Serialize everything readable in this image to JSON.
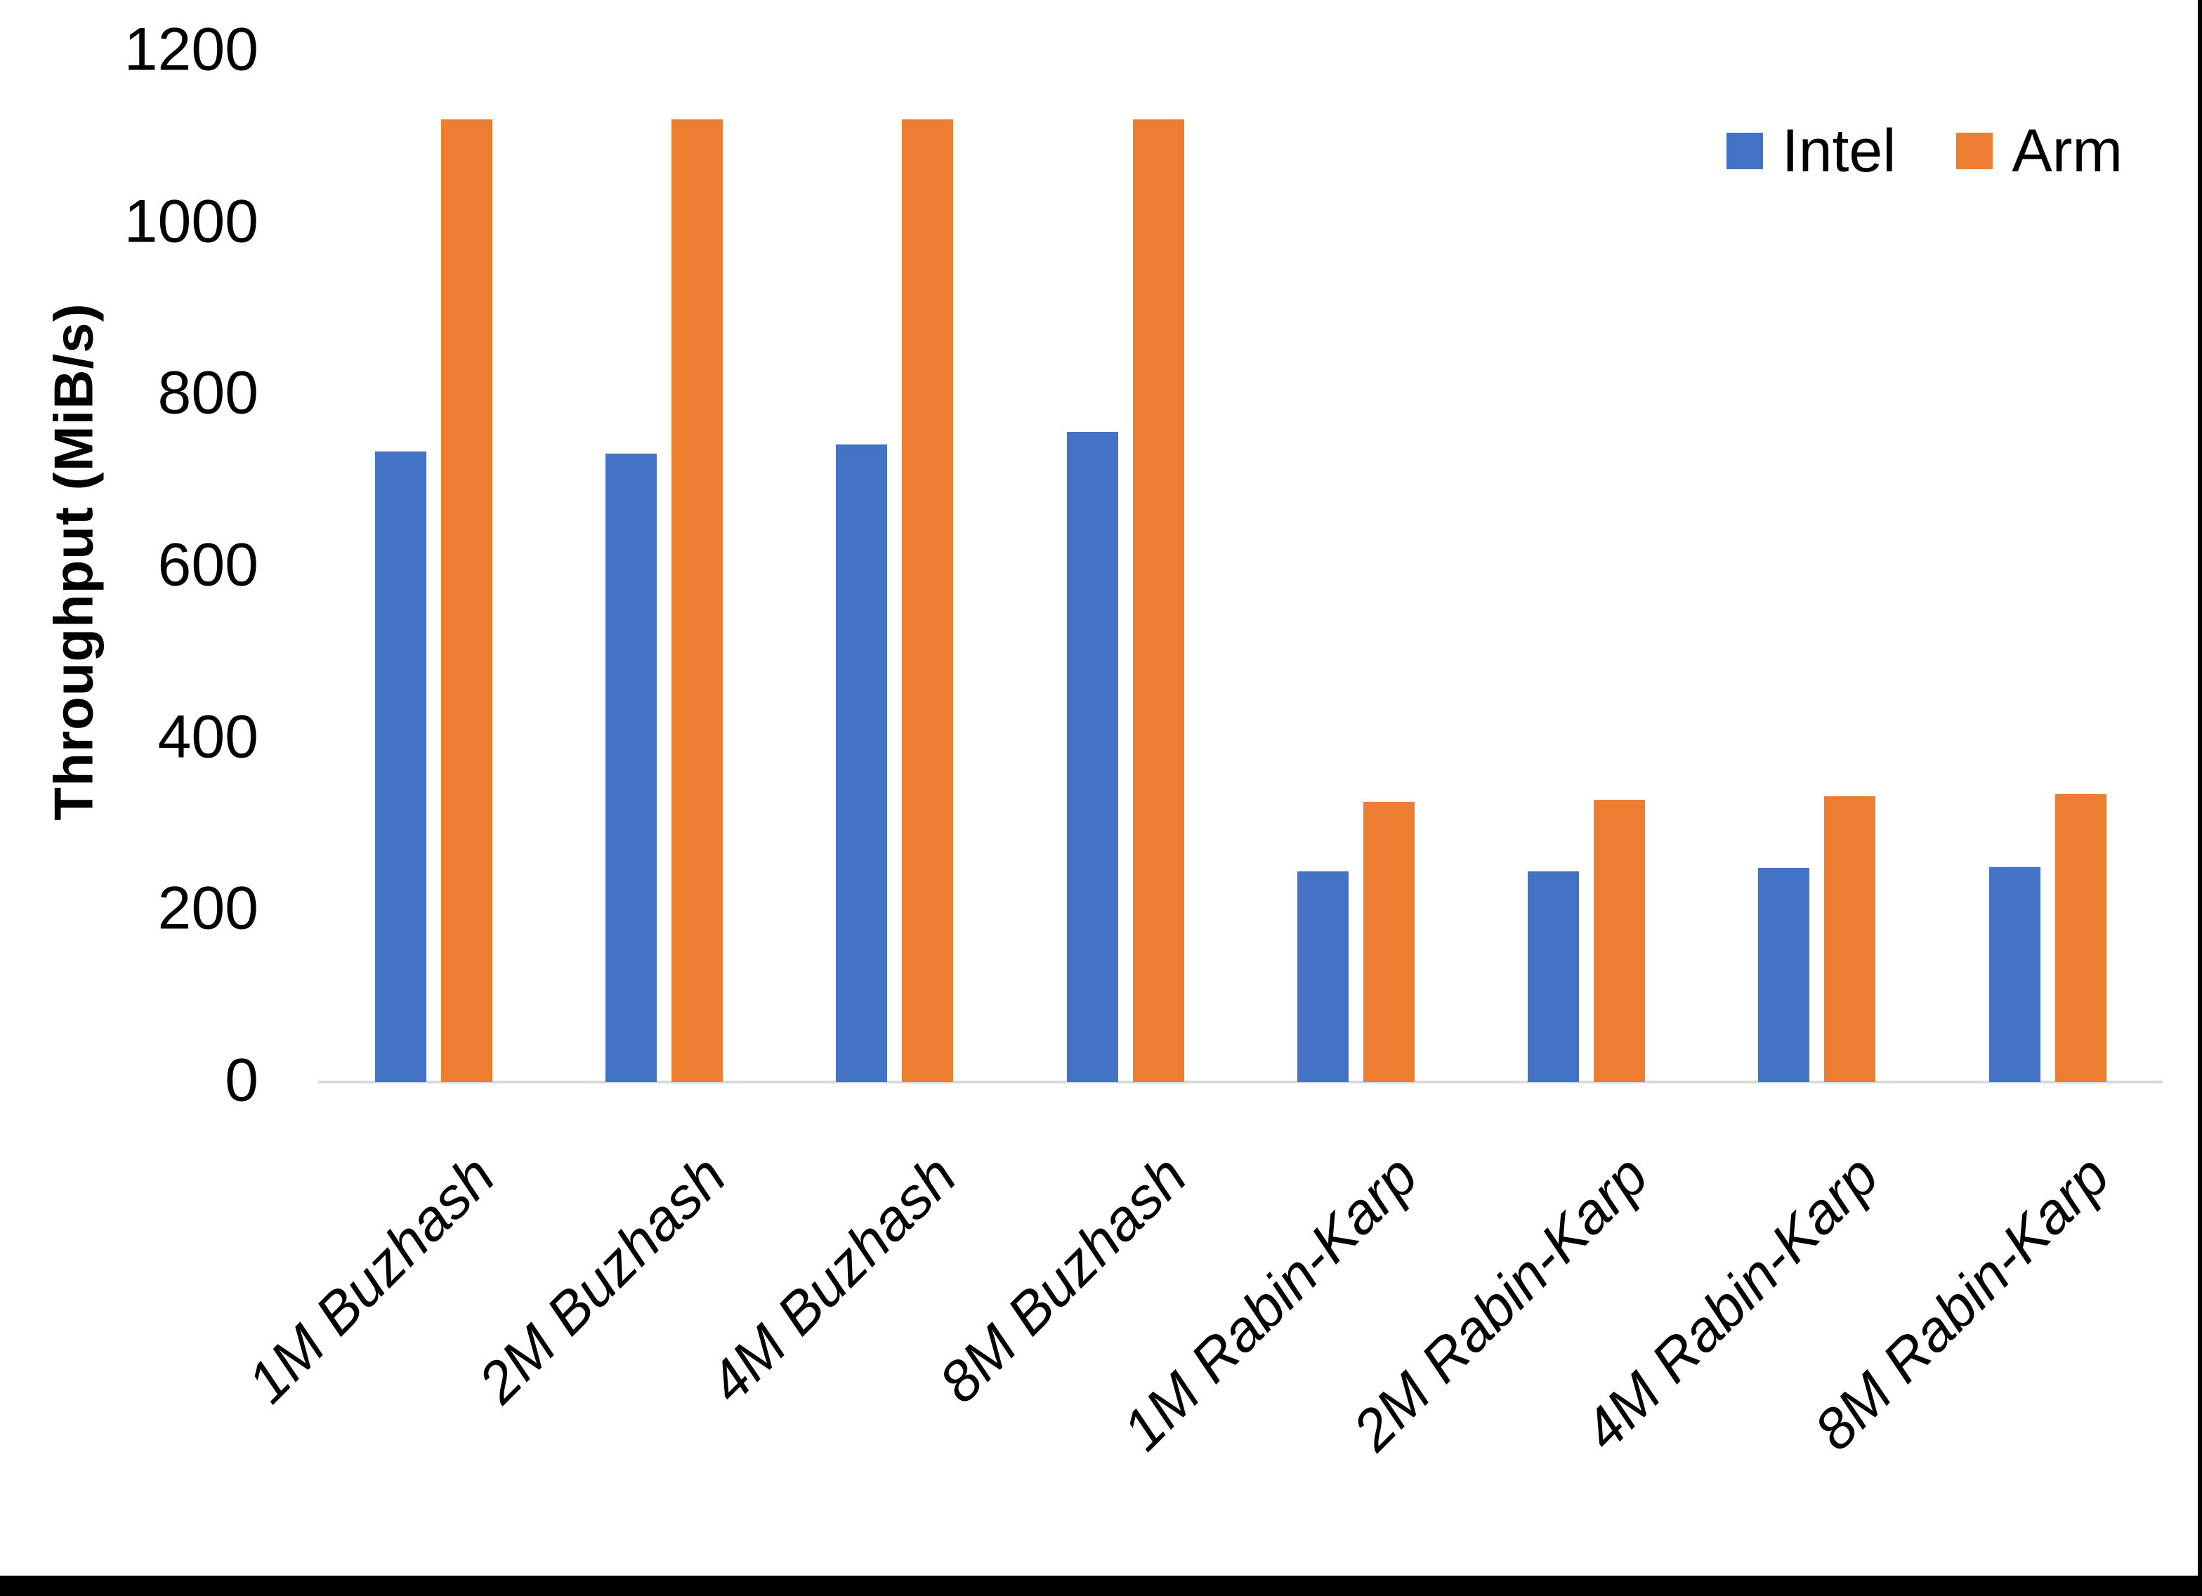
{
  "chart_data": {
    "type": "bar",
    "title": "",
    "ylabel": "Throughput (MiB/s)",
    "xlabel": "",
    "categories": [
      "1M Buzhash",
      "2M Buzhash",
      "4M Buzhash",
      "8M Buzhash",
      "1M Rabin-Karp",
      "2M Rabin-Karp",
      "4M Rabin-Karp",
      "8M Rabin-Karp"
    ],
    "series": [
      {
        "name": "Intel",
        "color": "#4472C4",
        "values": [
          734,
          732,
          742,
          757,
          245,
          245,
          249,
          250
        ]
      },
      {
        "name": "Arm",
        "color": "#ED7D31",
        "values": [
          1121,
          1121,
          1121,
          1121,
          326,
          329,
          333,
          335
        ]
      }
    ],
    "ylim": [
      0,
      1200
    ],
    "yticks": [
      0,
      200,
      400,
      600,
      800,
      1000,
      1200
    ],
    "grid": false,
    "legend_position": "top-right",
    "axis_line_color": "#d9d9d9",
    "text_color": "#000000"
  }
}
